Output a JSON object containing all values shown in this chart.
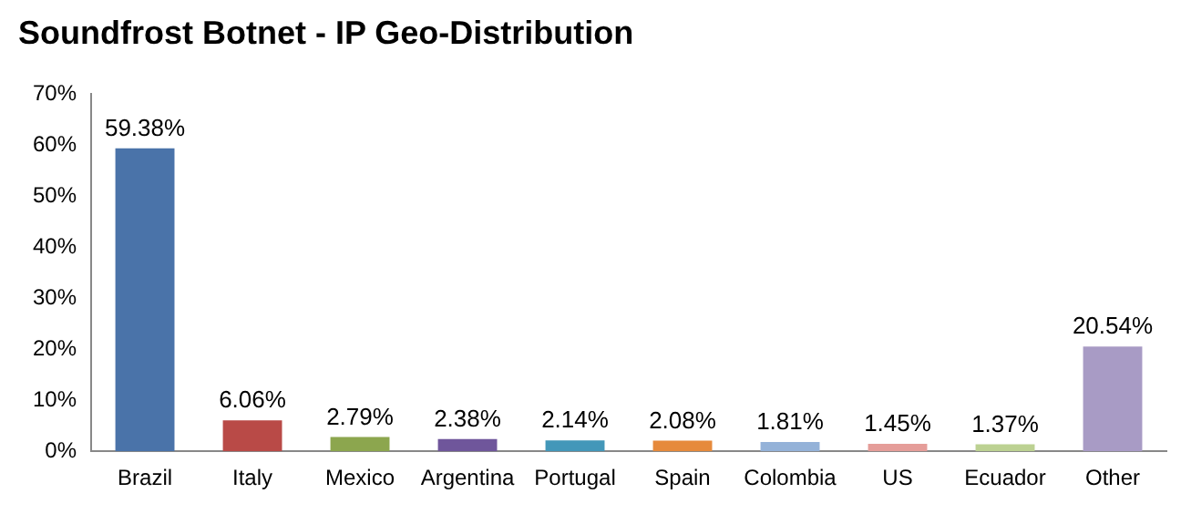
{
  "chart_data": {
    "type": "bar",
    "title": "Soundfrost Botnet - IP Geo-Distribution",
    "categories": [
      "Brazil",
      "Italy",
      "Mexico",
      "Argentina",
      "Portugal",
      "Spain",
      "Colombia",
      "US",
      "Ecuador",
      "Other"
    ],
    "values": [
      59.38,
      6.06,
      2.79,
      2.38,
      2.14,
      2.08,
      1.81,
      1.45,
      1.37,
      20.54
    ],
    "colors": [
      "#4a73a9",
      "#b94a47",
      "#8ca64e",
      "#6f569b",
      "#4397b9",
      "#e68a3c",
      "#94b2d8",
      "#e59d99",
      "#bcd192",
      "#a89bc5"
    ],
    "value_labels": [
      "59.38%",
      "6.06%",
      "2.79%",
      "2.38%",
      "2.14%",
      "2.08%",
      "1.81%",
      "1.45%",
      "1.37%",
      "20.54%"
    ],
    "ylim": [
      0,
      70
    ],
    "yticks": [
      {
        "value": 0,
        "label": "0%"
      },
      {
        "value": 10,
        "label": "10%"
      },
      {
        "value": 20,
        "label": "20%"
      },
      {
        "value": 30,
        "label": "30%"
      },
      {
        "value": 40,
        "label": "40%"
      },
      {
        "value": 50,
        "label": "50%"
      },
      {
        "value": 60,
        "label": "60%"
      },
      {
        "value": 70,
        "label": "70%"
      }
    ],
    "grid": false,
    "legend": false
  }
}
